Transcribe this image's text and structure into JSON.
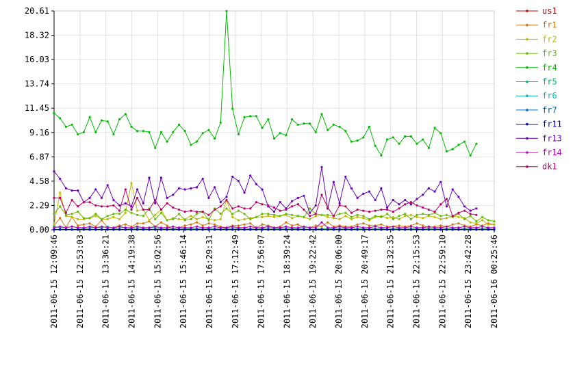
{
  "chart_data": {
    "type": "line",
    "title": "",
    "xlabel": "",
    "ylabel": "",
    "ylim": [
      0,
      20.61
    ],
    "y_ticks": [
      "0.00",
      "2.29",
      "4.58",
      "6.87",
      "9.16",
      "11.45",
      "13.74",
      "16.03",
      "18.32",
      "20.61"
    ],
    "x_ticks": [
      "2011-06-15 12:09:46",
      "2011-06-15 12:53:03",
      "2011-06-15 13:36:21",
      "2011-06-15 14:19:38",
      "2011-06-15 15:02:56",
      "2011-06-15 15:46:14",
      "2011-06-15 16:29:31",
      "2011-06-15 17:12:49",
      "2011-06-15 17:56:07",
      "2011-06-15 18:39:24",
      "2011-06-15 19:22:42",
      "2011-06-15 20:06:00",
      "2011-06-15 20:49:17",
      "2011-06-15 21:32:35",
      "2011-06-15 22:15:53",
      "2011-06-15 22:59:10",
      "2011-06-15 23:42:28",
      "2011-06-16 00:25:46"
    ],
    "x_start": "2011-06-15 12:09:46",
    "x_end": "2011-06-16 00:25:46",
    "grid": true,
    "legend_position": "right",
    "series": [
      {
        "name": "us1",
        "color": "#cc0000",
        "values": [
          0.01,
          0.01,
          0.01,
          0.01,
          0.01,
          0.01,
          0.01,
          0.01,
          0.01,
          0.01,
          0.01,
          0.01,
          0.01,
          0.01,
          0.01,
          0.01,
          0.01,
          0.01,
          0.01,
          0.01,
          0.01,
          0.01,
          0.01,
          0.01,
          0.01,
          0.01,
          0.01,
          0.01,
          0.01,
          0.01,
          0.01,
          0.01,
          0.01,
          0.01,
          0.01,
          0.01,
          0.01,
          0.01,
          0.01,
          0.01,
          0.01,
          0.01,
          0.01,
          0.01,
          0.01,
          0.01,
          0.01,
          0.01,
          0.01,
          0.01,
          0.01,
          0.01,
          0.01,
          0.01,
          0.01,
          0.01,
          0.01,
          0.01,
          0.01,
          0.01,
          0.01,
          0.01,
          0.01,
          0.01,
          0.01,
          0.01,
          0.01,
          0.01,
          0.01,
          0.01,
          0.01,
          0.01,
          0.01,
          0.01,
          0.01
        ]
      },
      {
        "name": "fr1",
        "color": "#cc7711",
        "values": [
          0.4,
          1.1,
          0.2,
          1.2,
          0.4,
          0.5,
          0.6,
          0.3,
          0.9,
          0.2,
          0.2,
          0.4,
          0.5,
          0.3,
          0.6,
          0.6,
          0.8,
          0.3,
          0.7,
          0.4,
          0.1,
          0.2,
          0.4,
          0.5,
          0.7,
          0.4,
          0.6,
          0.5,
          0.3,
          0.2,
          0.4,
          0.4,
          0.5,
          0.6,
          0.2,
          0.5,
          0.4,
          0.2,
          0.3,
          0.7,
          0.4,
          0.5,
          0.2,
          0.2,
          0.4,
          0.3,
          0.7,
          0.3,
          0.4,
          0.3,
          0.3,
          0.5,
          0.6,
          0.4,
          0.4,
          0.5,
          0.3,
          0.3,
          0.4,
          0.3,
          0.4,
          0.6,
          0.4,
          0.2,
          0.3,
          0.4,
          0.3,
          0.5,
          0.6,
          0.4,
          0.3,
          0.5,
          0.4,
          0.6,
          0.5
        ]
      },
      {
        "name": "fr2",
        "color": "#bbbb00",
        "values": [
          0.5,
          3.5,
          1.3,
          1.2,
          1.0,
          1.0,
          1.1,
          1.3,
          1.0,
          1.0,
          1.2,
          1.0,
          1.6,
          4.4,
          1.8,
          1.9,
          0.9,
          1.4,
          1.9,
          0.9,
          1.1,
          1.0,
          1.0,
          1.3,
          1.0,
          1.2,
          1.0,
          0.9,
          1.0,
          2.8,
          1.2,
          0.9,
          1.0,
          1.1,
          1.2,
          1.2,
          1.3,
          1.2,
          1.3,
          1.4,
          1.1,
          1.3,
          1.2,
          1.0,
          1.3,
          1.4,
          1.2,
          1.1,
          1.0,
          1.3,
          1.0,
          1.2,
          1.1,
          0.9,
          1.2,
          1.3,
          1.1,
          1.2,
          1.0,
          1.3,
          1.4,
          1.2,
          1.1,
          1.3,
          1.2,
          1.0,
          1.1,
          1.3,
          1.2,
          1.1,
          0.7,
          0.6,
          0.9,
          0.5,
          0.5
        ]
      },
      {
        "name": "fr3",
        "color": "#66bb00",
        "values": [
          1.5,
          2.2,
          1.4,
          1.5,
          1.7,
          1.1,
          1.1,
          1.5,
          1.0,
          1.3,
          1.5,
          1.5,
          1.9,
          1.6,
          1.4,
          1.3,
          2.0,
          1.0,
          1.6,
          0.9,
          1.0,
          1.5,
          0.9,
          1.0,
          1.5,
          1.7,
          0.9,
          2.0,
          1.5,
          2.0,
          1.5,
          1.8,
          1.5,
          1.0,
          1.2,
          1.5,
          1.5,
          1.4,
          1.3,
          1.5,
          1.4,
          1.3,
          1.2,
          2.0,
          1.5,
          1.4,
          1.4,
          1.3,
          1.5,
          1.6,
          1.2,
          1.4,
          1.3,
          1.0,
          1.3,
          1.2,
          1.5,
          1.0,
          1.3,
          1.5,
          1.0,
          1.4,
          1.5,
          1.4,
          1.6,
          1.3,
          1.4,
          1.2,
          1.5,
          1.0,
          1.3,
          0.8,
          1.2,
          0.9,
          0.8
        ]
      },
      {
        "name": "fr4",
        "color": "#00bb00",
        "values": [
          11.0,
          10.5,
          9.7,
          9.9,
          9.0,
          9.2,
          10.6,
          9.2,
          10.3,
          10.2,
          9.0,
          10.4,
          10.9,
          9.7,
          9.3,
          9.3,
          9.2,
          7.7,
          9.2,
          8.3,
          9.2,
          9.9,
          9.3,
          8.0,
          8.3,
          9.1,
          9.4,
          8.6,
          10.1,
          20.6,
          11.4,
          9.0,
          10.6,
          10.7,
          10.7,
          9.6,
          10.4,
          8.6,
          9.1,
          8.9,
          10.4,
          9.9,
          10.0,
          10.0,
          9.2,
          10.9,
          9.4,
          9.9,
          9.7,
          9.3,
          8.3,
          8.4,
          8.7,
          9.7,
          7.9,
          7.0,
          8.5,
          8.7,
          8.1,
          8.8,
          8.8,
          8.1,
          8.5,
          7.7,
          9.6,
          9.1,
          7.4,
          7.6,
          8.0,
          8.3,
          7.0,
          8.1,
          null,
          null,
          null
        ]
      },
      {
        "name": "fr5",
        "color": "#00bb66",
        "values": [
          0.3,
          0.2,
          0.2,
          0.3,
          0.2,
          0.1,
          0.2,
          0.2,
          0.2,
          0.3,
          0.1,
          0.2,
          0.2,
          0.1,
          0.2,
          0.1,
          0.2,
          0.2,
          0.1,
          0.2,
          0.1,
          0.2,
          0.1,
          0.1,
          0.1,
          0.2,
          0.1,
          0.1,
          0.2,
          0.1,
          0.2,
          0.1,
          0.2,
          0.1,
          0.2,
          0.1,
          0.2,
          0.1,
          0.1,
          0.2,
          0.1,
          0.1,
          0.2,
          0.2,
          0.2,
          0.1,
          0.1,
          0.1,
          0.2,
          0.1,
          0.2,
          0.1,
          0.1,
          0.2,
          0.1,
          0.1,
          0.2,
          0.1,
          0.1,
          0.2,
          0.1,
          0.1,
          0.2,
          0.1,
          0.1,
          0.2,
          0.1,
          0.1,
          0.2,
          0.1,
          0.1,
          0.2,
          0.1,
          0.1,
          0.2
        ]
      },
      {
        "name": "fr6",
        "color": "#00bbbb",
        "values": [
          0.05,
          0.05,
          0.05,
          0.05,
          0.05,
          0.05,
          0.05,
          0.05,
          0.05,
          0.05,
          0.05,
          0.05,
          0.05,
          0.05,
          0.05,
          0.05,
          0.05,
          0.05,
          0.05,
          0.05,
          0.05,
          0.05,
          0.05,
          0.05,
          0.05,
          0.05,
          0.05,
          0.05,
          0.05,
          0.05,
          0.05,
          0.05,
          0.05,
          0.05,
          0.05,
          0.05,
          0.05,
          0.05,
          0.05,
          0.05,
          0.05,
          0.05,
          0.05,
          0.05,
          0.05,
          0.05,
          0.05,
          0.05,
          0.05,
          0.05,
          0.05,
          0.05,
          0.05,
          0.05,
          0.05,
          0.05,
          0.05,
          0.05,
          0.05,
          0.05,
          0.05,
          0.05,
          0.05,
          0.05,
          0.05,
          0.05,
          0.05,
          0.05,
          0.05,
          0.05,
          0.05,
          0.05,
          0.05,
          0.05,
          0.05
        ]
      },
      {
        "name": "fr7",
        "color": "#0066bb",
        "values": [
          0.02,
          0.02,
          0.02,
          0.02,
          0.02,
          0.02,
          0.02,
          0.02,
          0.02,
          0.02,
          0.02,
          0.02,
          0.02,
          0.02,
          0.02,
          0.02,
          0.02,
          0.02,
          0.02,
          0.02,
          0.02,
          0.02,
          0.02,
          0.02,
          0.02,
          0.02,
          0.02,
          0.02,
          0.02,
          0.02,
          0.02,
          0.02,
          0.02,
          0.02,
          0.02,
          0.02,
          0.02,
          0.02,
          0.02,
          0.02,
          0.02,
          0.02,
          0.02,
          0.02,
          0.02,
          0.02,
          0.02,
          0.02,
          0.02,
          0.02,
          0.02,
          0.02,
          0.02,
          0.02,
          0.02,
          0.02,
          0.02,
          0.02,
          0.02,
          0.02,
          0.02,
          0.02,
          0.02,
          0.02,
          0.02,
          0.02,
          0.02,
          0.02,
          0.02,
          0.02,
          0.02,
          0.02,
          0.02,
          0.02,
          0.02
        ]
      },
      {
        "name": "fr11",
        "color": "#0000bb",
        "values": [
          0.03,
          0.03,
          0.03,
          0.03,
          0.03,
          0.03,
          0.03,
          0.03,
          0.03,
          0.03,
          0.03,
          0.03,
          0.03,
          0.03,
          0.03,
          0.03,
          0.03,
          0.03,
          0.03,
          0.03,
          0.03,
          0.03,
          0.03,
          0.03,
          0.03,
          0.03,
          0.03,
          0.03,
          0.03,
          0.03,
          0.03,
          0.03,
          0.03,
          0.03,
          0.03,
          0.03,
          0.03,
          0.03,
          0.03,
          0.03,
          0.03,
          0.03,
          0.03,
          0.03,
          0.03,
          0.03,
          0.03,
          0.03,
          0.03,
          0.03,
          0.03,
          0.03,
          0.03,
          0.03,
          0.03,
          0.03,
          0.03,
          0.03,
          0.03,
          0.03,
          0.03,
          0.03,
          0.03,
          0.03,
          0.03,
          0.03,
          0.03,
          0.03,
          0.03,
          0.03,
          0.03,
          0.03,
          0.03,
          0.03,
          0.03
        ]
      },
      {
        "name": "fr13",
        "color": "#6600bb",
        "values": [
          5.5,
          4.8,
          3.9,
          3.7,
          3.7,
          2.6,
          3.0,
          3.8,
          3.0,
          4.2,
          2.8,
          2.3,
          2.5,
          2.2,
          3.8,
          2.5,
          4.9,
          2.5,
          4.9,
          3.0,
          3.3,
          3.9,
          3.8,
          3.9,
          4.0,
          4.8,
          3.0,
          4.0,
          2.6,
          3.1,
          5.0,
          4.6,
          3.5,
          5.1,
          4.3,
          3.8,
          2.2,
          1.7,
          2.6,
          2.0,
          2.7,
          3.0,
          3.2,
          1.6,
          2.3,
          5.9,
          2.0,
          4.5,
          2.5,
          5.0,
          3.9,
          3.0,
          3.4,
          3.6,
          2.8,
          3.9,
          2.1,
          2.8,
          2.4,
          2.8,
          2.4,
          2.9,
          3.3,
          3.9,
          3.6,
          4.5,
          2.2,
          3.8,
          3.1,
          2.2,
          1.8,
          2.0,
          null,
          null,
          null
        ]
      },
      {
        "name": "fr14",
        "color": "#bb00bb",
        "values": [
          0.2,
          0.3,
          0.2,
          0.3,
          0.2,
          0.2,
          0.3,
          0.2,
          0.3,
          0.2,
          0.2,
          0.3,
          0.2,
          0.2,
          0.3,
          0.2,
          0.2,
          0.3,
          0.2,
          0.2,
          0.3,
          0.2,
          0.2,
          0.2,
          0.3,
          0.2,
          0.2,
          0.3,
          0.2,
          0.2,
          0.3,
          0.2,
          0.2,
          0.3,
          0.2,
          0.2,
          0.3,
          0.2,
          0.2,
          0.3,
          0.2,
          0.2,
          0.3,
          0.2,
          0.2,
          0.7,
          0.2,
          0.2,
          0.3,
          0.2,
          0.2,
          0.3,
          0.2,
          0.2,
          0.3,
          0.2,
          0.2,
          0.3,
          0.2,
          0.2,
          0.3,
          0.2,
          0.2,
          0.3,
          0.2,
          0.2,
          0.3,
          0.2,
          0.2,
          0.3,
          0.2,
          0.2,
          0.3,
          0.2,
          0.2
        ]
      },
      {
        "name": "dk1",
        "color": "#bb0066",
        "values": [
          3.0,
          3.0,
          1.6,
          2.8,
          2.2,
          2.6,
          2.6,
          2.3,
          2.2,
          2.2,
          2.3,
          1.8,
          3.8,
          1.9,
          3.0,
          1.9,
          1.9,
          2.8,
          1.9,
          2.5,
          2.1,
          1.9,
          1.7,
          1.8,
          1.7,
          1.7,
          1.4,
          1.9,
          2.2,
          2.8,
          2.0,
          2.2,
          2.0,
          2.0,
          2.6,
          2.4,
          2.3,
          2.1,
          1.8,
          1.9,
          2.2,
          2.4,
          1.9,
          1.3,
          1.5,
          3.3,
          2.1,
          1.3,
          2.3,
          2.2,
          1.6,
          1.9,
          1.8,
          1.7,
          1.8,
          1.9,
          1.9,
          1.7,
          2.0,
          2.4,
          2.6,
          2.3,
          2.1,
          1.9,
          1.7,
          2.4,
          2.9,
          1.3,
          1.6,
          1.8,
          1.5,
          1.4,
          null,
          null,
          null
        ]
      }
    ]
  }
}
